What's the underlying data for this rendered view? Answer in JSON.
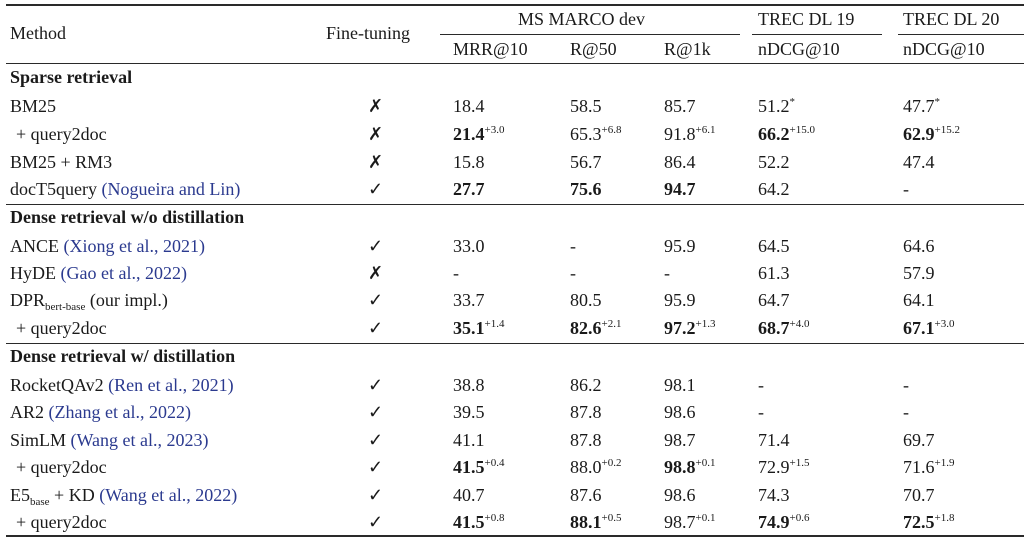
{
  "header": {
    "method": "Method",
    "finetuning": "Fine-tuning",
    "ms_marco": "MS MARCO dev",
    "trec19": "TREC DL 19",
    "trec20": "TREC DL 20",
    "mrr": "MRR@10",
    "r50": "R@50",
    "r1k": "R@1k",
    "ndcg19": "nDCG@10",
    "ndcg20": "nDCG@10"
  },
  "groups": {
    "sparse": "Sparse retrieval",
    "dense_wo": "Dense retrieval w/o distillation",
    "dense_w": "Dense retrieval w/ distillation"
  },
  "marks": {
    "cross": "✗",
    "check": "✓"
  },
  "rows": {
    "bm25": {
      "method": "BM25",
      "ft": "✗",
      "mrr": "18.4",
      "r50": "58.5",
      "r1k": "85.7",
      "t19": "51.2",
      "t19_sup": "*",
      "t20": "47.7",
      "t20_sup": "*"
    },
    "bm25_q2d": {
      "method": "+ query2doc",
      "ft": "✗",
      "mrr": "21.4",
      "mrr_sup": "+3.0",
      "r50": "65.3",
      "r50_sup": "+6.8",
      "r1k": "91.8",
      "r1k_sup": "+6.1",
      "t19": "66.2",
      "t19_sup": "+15.0",
      "t20": "62.9",
      "t20_sup": "+15.2"
    },
    "bm25_rm3": {
      "method": "BM25 + RM3",
      "ft": "✗",
      "mrr": "15.8",
      "r50": "56.7",
      "r1k": "86.4",
      "t19": "52.2",
      "t20": "47.4"
    },
    "doct5": {
      "method": "docT5query",
      "cite": "(Nogueira and Lin)",
      "ft": "✓",
      "mrr": "27.7",
      "r50": "75.6",
      "r1k": "94.7",
      "t19": "64.2",
      "t20": "-"
    },
    "ance": {
      "method": "ANCE",
      "cite": "(Xiong et al., 2021)",
      "ft": "✓",
      "mrr": "33.0",
      "r50": "-",
      "r1k": "95.9",
      "t19": "64.5",
      "t20": "64.6"
    },
    "hyde": {
      "method": "HyDE",
      "cite": "(Gao et al., 2022)",
      "ft": "✗",
      "mrr": "-",
      "r50": "-",
      "r1k": "-",
      "t19": "61.3",
      "t20": "57.9"
    },
    "dpr": {
      "method": "DPR",
      "method_sub": "bert-base",
      "suffix": "(our impl.)",
      "ft": "✓",
      "mrr": "33.7",
      "r50": "80.5",
      "r1k": "95.9",
      "t19": "64.7",
      "t20": "64.1"
    },
    "dpr_q2d": {
      "method": "+ query2doc",
      "ft": "✓",
      "mrr": "35.1",
      "mrr_sup": "+1.4",
      "r50": "82.6",
      "r50_sup": "+2.1",
      "r1k": "97.2",
      "r1k_sup": "+1.3",
      "t19": "68.7",
      "t19_sup": "+4.0",
      "t20": "67.1",
      "t20_sup": "+3.0"
    },
    "rocket": {
      "method": "RocketQAv2",
      "cite": "(Ren et al., 2021)",
      "ft": "✓",
      "mrr": "38.8",
      "r50": "86.2",
      "r1k": "98.1",
      "t19": "-",
      "t20": "-"
    },
    "ar2": {
      "method": "AR2",
      "cite": "(Zhang et al., 2022)",
      "ft": "✓",
      "mrr": "39.5",
      "r50": "87.8",
      "r1k": "98.6",
      "t19": "-",
      "t20": "-"
    },
    "simlm": {
      "method": "SimLM",
      "cite": "(Wang et al., 2023)",
      "ft": "✓",
      "mrr": "41.1",
      "r50": "87.8",
      "r1k": "98.7",
      "t19": "71.4",
      "t20": "69.7"
    },
    "simlm_q2d": {
      "method": "+ query2doc",
      "ft": "✓",
      "mrr": "41.5",
      "mrr_sup": "+0.4",
      "r50": "88.0",
      "r50_sup": "+0.2",
      "r1k": "98.8",
      "r1k_sup": "+0.1",
      "t19": "72.9",
      "t19_sup": "+1.5",
      "t20": "71.6",
      "t20_sup": "+1.9"
    },
    "e5": {
      "method": "E5",
      "method_sub": "base",
      "suffix": "+ KD",
      "cite": "(Wang et al., 2022)",
      "ft": "✓",
      "mrr": "40.7",
      "r50": "87.6",
      "r1k": "98.6",
      "t19": "74.3",
      "t20": "70.7"
    },
    "e5_q2d": {
      "method": "+ query2doc",
      "ft": "✓",
      "mrr": "41.5",
      "mrr_sup": "+0.8",
      "r50": "88.1",
      "r50_sup": "+0.5",
      "r1k": "98.7",
      "r1k_sup": "+0.1",
      "t19": "74.9",
      "t19_sup": "+0.6",
      "t20": "72.5",
      "t20_sup": "+1.8"
    }
  },
  "colors": {
    "citation": "#2b3a8f",
    "text": "#1a1a1a"
  }
}
